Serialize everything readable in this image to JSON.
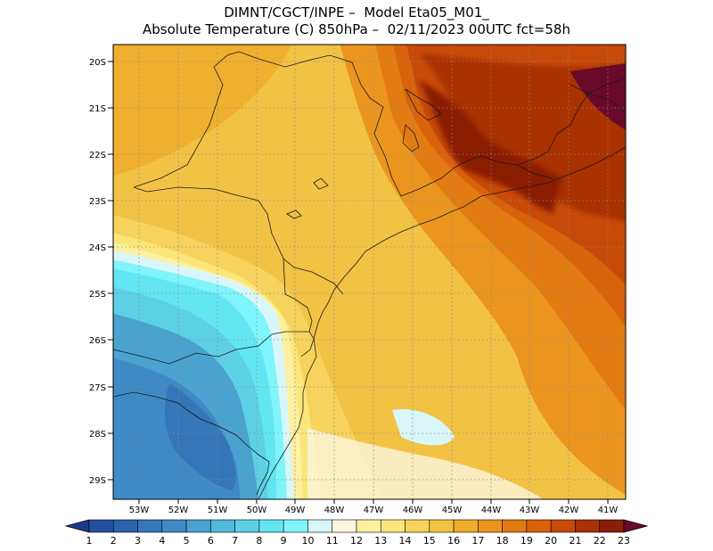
{
  "title": {
    "line1": "DIMNT/CGCT/INPE –  Model Eta05_M01_",
    "line2": "Absolute Temperature (C) 850hPa –  02/11/2023 00UTC fct=58h"
  },
  "axes": {
    "lat_labels": [
      "20S",
      "21S",
      "22S",
      "23S",
      "24S",
      "25S",
      "26S",
      "27S",
      "28S",
      "29S"
    ],
    "lon_labels": [
      "53W",
      "52W",
      "51W",
      "50W",
      "49W",
      "48W",
      "47W",
      "46W",
      "45W",
      "44W",
      "43W",
      "42W",
      "41W"
    ]
  },
  "colorbar": {
    "labels": [
      "1",
      "2",
      "3",
      "4",
      "5",
      "6",
      "7",
      "8",
      "9",
      "10",
      "11",
      "12",
      "13",
      "14",
      "15",
      "16",
      "17",
      "18",
      "19",
      "20",
      "21",
      "22",
      "23"
    ],
    "colors": [
      "#1c3a8c",
      "#23509e",
      "#2b62ad",
      "#3576b8",
      "#3f8ac4",
      "#4aa2cf",
      "#52bada",
      "#5dd0e6",
      "#62e6f2",
      "#7ff5fb",
      "#d9f6fb",
      "#fdf6de",
      "#fdf0a0",
      "#fae67a",
      "#f6d35c",
      "#f2c244",
      "#efad2c",
      "#eb951f",
      "#e27b12",
      "#d9620b",
      "#c84a08",
      "#a93206",
      "#8a1e06",
      "#6a0a2a"
    ]
  },
  "map": {
    "region": "Southern/Southeastern Brazil",
    "grid": true
  }
}
